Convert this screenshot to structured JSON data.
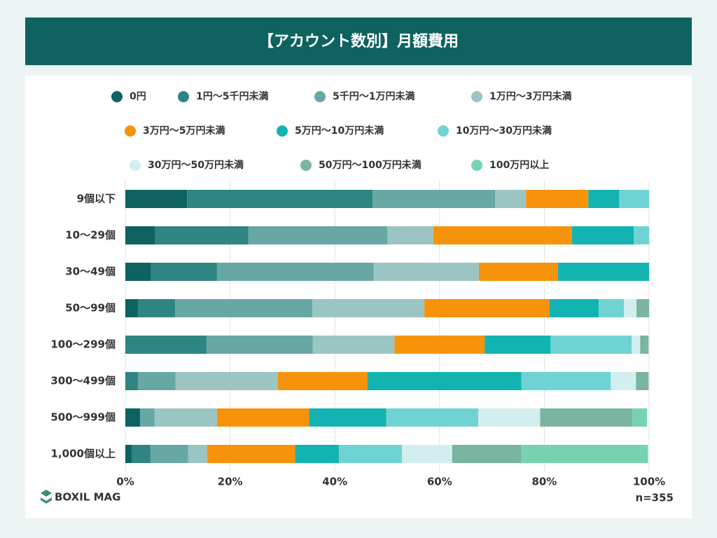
{
  "chart_data": {
    "type": "stacked-barh",
    "title": "【アカウント数別】月額費用",
    "categories": [
      "9個以下",
      "10〜29個",
      "30〜49個",
      "50〜99個",
      "100〜299個",
      "300〜499個",
      "500〜999個",
      "1,000個以上"
    ],
    "series": [
      {
        "name": "0円",
        "color": "#0e6360",
        "values": [
          11.8,
          5.7,
          4.9,
          2.4,
          0,
          0,
          2.8,
          1.2
        ]
      },
      {
        "name": "1円〜5千円未満",
        "color": "#2e8582",
        "values": [
          35.4,
          17.8,
          12.6,
          7.1,
          15.5,
          2.4,
          0,
          3.6
        ]
      },
      {
        "name": "5千円〜1万円未満",
        "color": "#67a8a5",
        "values": [
          23.4,
          26.5,
          29.9,
          26.2,
          20.3,
          7.2,
          2.8,
          7.2
        ]
      },
      {
        "name": "1万円〜3万円未満",
        "color": "#9ac5c3",
        "values": [
          5.9,
          8.8,
          20.1,
          21.4,
          15.6,
          19.5,
          11.9,
          3.6
        ]
      },
      {
        "name": "3万円〜5万円未満",
        "color": "#f7930a",
        "values": [
          11.9,
          26.5,
          15.1,
          23.9,
          17.2,
          17.1,
          17.6,
          16.8
        ]
      },
      {
        "name": "5万円〜10万円未満",
        "color": "#13b3b1",
        "values": [
          5.9,
          11.8,
          17.4,
          9.4,
          12.6,
          29.4,
          14.7,
          8.4
        ]
      },
      {
        "name": "10万円〜30万円未満",
        "color": "#70d3d3",
        "values": [
          5.7,
          2.9,
          0,
          4.8,
          15.5,
          17.1,
          17.6,
          12.0
        ]
      },
      {
        "name": "30万円〜50万円未満",
        "color": "#d3eeee",
        "values": [
          0,
          0,
          0,
          2.4,
          1.6,
          4.8,
          11.8,
          9.6
        ]
      },
      {
        "name": "50万円〜100万円未満",
        "color": "#79b5a0",
        "values": [
          0,
          0,
          0,
          2.4,
          1.6,
          2.4,
          17.6,
          13.2
        ]
      },
      {
        "name": "100万円以上",
        "color": "#76d3b2",
        "values": [
          0,
          0,
          0,
          0,
          0,
          0,
          2.8,
          24.2
        ]
      }
    ],
    "xlim": [
      0,
      100
    ],
    "xticks": [
      {
        "value": 0,
        "label": "0%"
      },
      {
        "value": 20,
        "label": "20%"
      },
      {
        "value": 40,
        "label": "40%"
      },
      {
        "value": 60,
        "label": "60%"
      },
      {
        "value": 80,
        "label": "80%"
      },
      {
        "value": 100,
        "label": "100%"
      }
    ],
    "grid": true,
    "note": "n=355",
    "brand": "BOXIL MAG"
  }
}
